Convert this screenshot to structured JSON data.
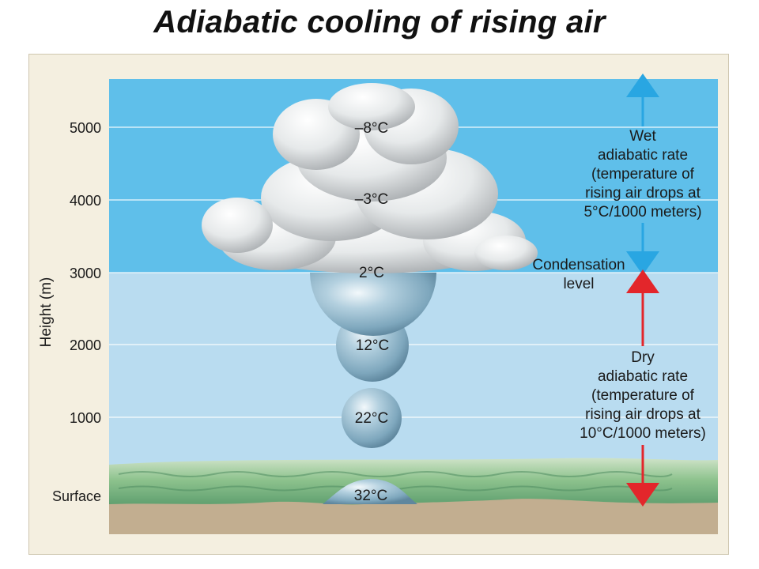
{
  "title": "Adiabatic cooling of rising air",
  "axis": {
    "label": "Height (m)",
    "ticks": [
      "5000",
      "4000",
      "3000",
      "2000",
      "1000",
      "Surface"
    ]
  },
  "parcels": [
    {
      "height": 5000,
      "temp": "–8°C"
    },
    {
      "height": 4000,
      "temp": "–3°C"
    },
    {
      "height": 3000,
      "temp": "2°C"
    },
    {
      "height": 2000,
      "temp": "12°C"
    },
    {
      "height": 1000,
      "temp": "22°C"
    },
    {
      "height": 0,
      "temp": "32°C"
    }
  ],
  "condensation": {
    "line1": "Condensation",
    "line2": "level"
  },
  "wet_rate": {
    "lines": [
      "Wet",
      "adiabatic rate",
      "(temperature of",
      "rising air drops at",
      "5°C/1000 meters)"
    ]
  },
  "dry_rate": {
    "lines": [
      "Dry",
      "adiabatic rate",
      "(temperature of",
      "rising air drops at",
      "10°C/1000 meters)"
    ]
  },
  "colors": {
    "upper_sky": "#5fbfea",
    "lower_sky": "#b9dcf0",
    "ground": "#c2ae90",
    "wet_arrow": "#29a6e2",
    "dry_arrow": "#e3262b",
    "sphere": "#8fb7cd"
  }
}
